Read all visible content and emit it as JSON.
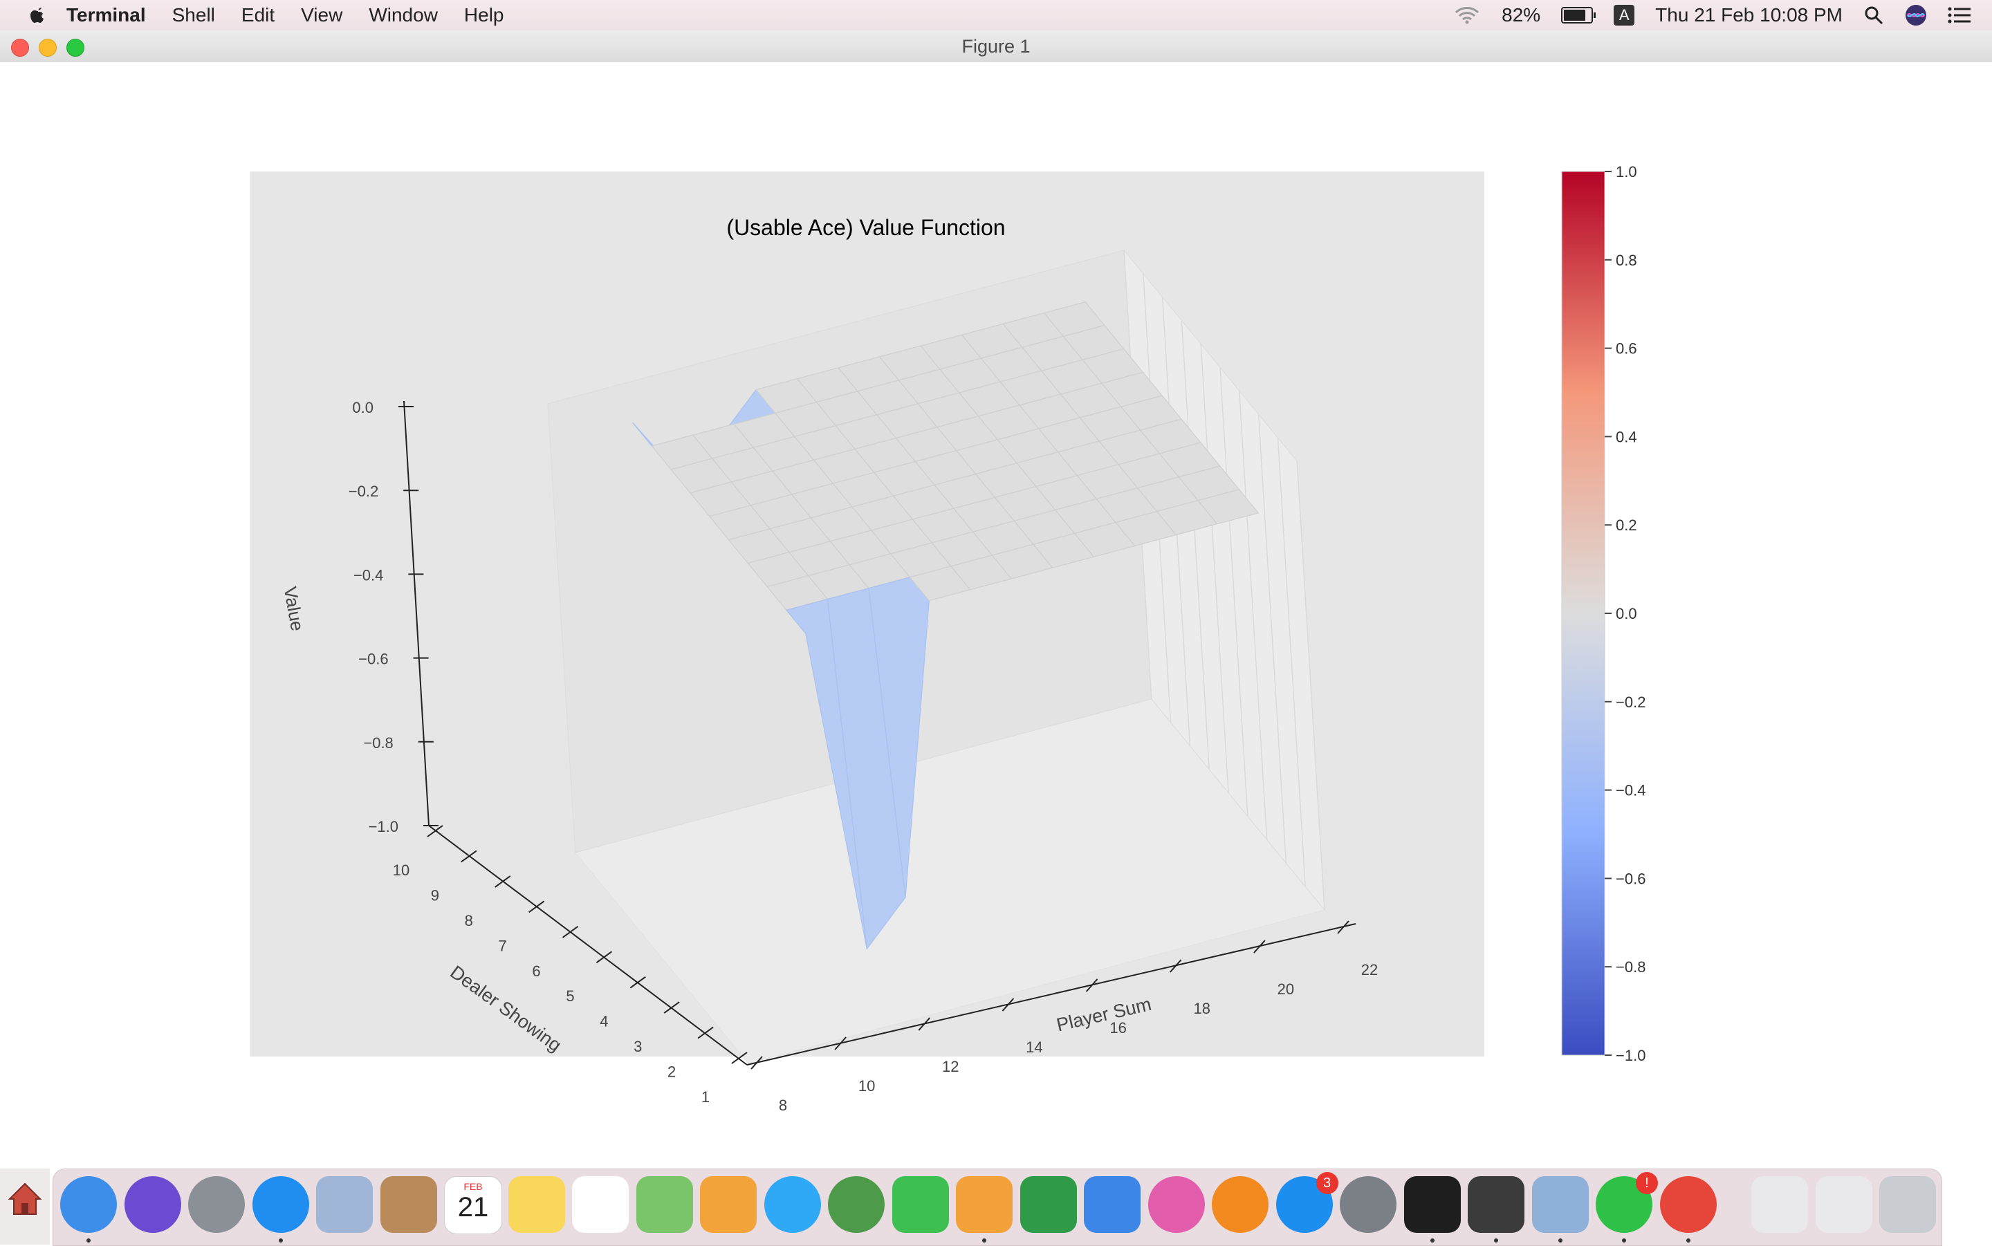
{
  "menubar": {
    "app_name": "Terminal",
    "menus": [
      "Shell",
      "Edit",
      "View",
      "Window",
      "Help"
    ],
    "battery_percent": "82%",
    "battery_level": 0.82,
    "input_source": "A",
    "datetime": "Thu 21 Feb  10:08 PM"
  },
  "window": {
    "title": "Figure 1"
  },
  "chart_data": {
    "type": "surface3d",
    "title": "(Usable Ace) Value Function",
    "xlabel": "Player Sum",
    "ylabel": "Dealer Showing",
    "zlabel": "Value",
    "x_ticks": [
      "8",
      "10",
      "12",
      "14",
      "16",
      "18",
      "20",
      "22"
    ],
    "y_ticks": [
      "1",
      "2",
      "3",
      "4",
      "5",
      "6",
      "7",
      "8",
      "9",
      "10"
    ],
    "z_ticks": [
      "−1.0",
      "−0.8",
      "−0.6",
      "−0.4",
      "−0.2",
      "0.0"
    ],
    "xlim": [
      8,
      22
    ],
    "ylim": [
      1,
      10
    ],
    "zlim": [
      -1.0,
      0.0
    ],
    "surface_value": 0.0,
    "dips": [
      {
        "player_sum": 11,
        "dealer_showing": 1,
        "value": -0.8
      },
      {
        "player_sum": 12,
        "dealer_showing": 1,
        "value": -0.7
      },
      {
        "player_sum": 11,
        "dealer_showing": 10,
        "value": -0.15
      },
      {
        "player_sum": 12,
        "dealer_showing": 10,
        "value": -0.1
      }
    ],
    "colormap": "coolwarm",
    "colorbar": {
      "ticks": [
        "1.0",
        "0.8",
        "0.6",
        "0.4",
        "0.2",
        "0.0",
        "−0.2",
        "−0.4",
        "−0.6",
        "−0.8",
        "−1.0"
      ],
      "vmin": -1.0,
      "vmax": 1.0
    },
    "colors": {
      "low": "#3b4cc0",
      "mid": "#dddddd",
      "high": "#b40426",
      "pane": "#e6e6e6"
    }
  },
  "dock": {
    "apps": [
      {
        "name": "finder-icon",
        "color": "#3d8ee8",
        "running": true
      },
      {
        "name": "siri-icon",
        "color": "#6b4bd1",
        "running": false
      },
      {
        "name": "launchpad-icon",
        "color": "#8b8f96",
        "running": false
      },
      {
        "name": "safari-icon",
        "color": "#1f8ef0",
        "running": true
      },
      {
        "name": "mail-icon",
        "color": "#9fb6d6",
        "running": false
      },
      {
        "name": "contacts-icon",
        "color": "#b98b5a",
        "running": false
      },
      {
        "name": "calendar-icon",
        "color": "#ffffff",
        "running": false,
        "label": "21",
        "sub": "FEB"
      },
      {
        "name": "notes-icon",
        "color": "#f8d75a",
        "running": false
      },
      {
        "name": "reminders-icon",
        "color": "#ffffff",
        "running": false
      },
      {
        "name": "maps-icon",
        "color": "#7ac46a",
        "running": false
      },
      {
        "name": "photos-icon",
        "color": "#f2a33a",
        "running": false
      },
      {
        "name": "messages-icon",
        "color": "#2fa8f5",
        "running": false
      },
      {
        "name": "android-studio-icon",
        "color": "#4c9a4a",
        "running": false
      },
      {
        "name": "facetime-icon",
        "color": "#3dbf52",
        "running": false
      },
      {
        "name": "pages-icon",
        "color": "#f3a23b",
        "running": true
      },
      {
        "name": "numbers-icon",
        "color": "#2f9b48",
        "running": false
      },
      {
        "name": "keynote-icon",
        "color": "#3b86e6",
        "running": false
      },
      {
        "name": "itunes-icon",
        "color": "#e25dac",
        "running": false
      },
      {
        "name": "books-icon",
        "color": "#f28a1f",
        "running": false
      },
      {
        "name": "app-store-icon",
        "color": "#1c8ef0",
        "running": false,
        "badge": "3"
      },
      {
        "name": "system-preferences-icon",
        "color": "#7b7f86",
        "running": false
      },
      {
        "name": "terminal-icon",
        "color": "#1e1e1e",
        "running": true
      },
      {
        "name": "sublime-text-icon",
        "color": "#3b3b3b",
        "running": true
      },
      {
        "name": "preview-icon",
        "color": "#8fb0d8",
        "running": true
      },
      {
        "name": "whatsapp-icon",
        "color": "#2fc048",
        "running": true,
        "badge": "!"
      },
      {
        "name": "chrome-icon",
        "color": "#e6463a",
        "running": true
      },
      {
        "name": "document-stack-icon",
        "color": "#e9e9ec",
        "running": false
      },
      {
        "name": "browser-window-icon",
        "color": "#e9e9ec",
        "running": false
      },
      {
        "name": "trash-icon",
        "color": "#c9cdd2",
        "running": false
      }
    ]
  }
}
